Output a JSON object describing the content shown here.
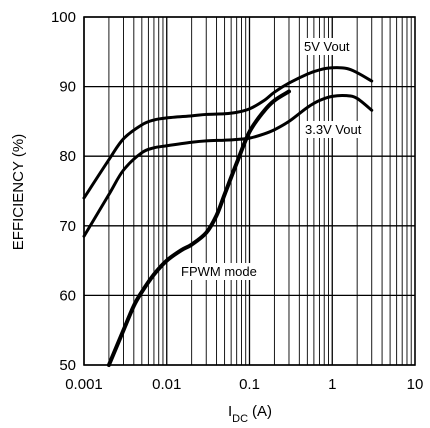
{
  "chart_data": {
    "type": "line",
    "xscale": "log",
    "xlim": [
      0.001,
      10
    ],
    "ylim": [
      50,
      100
    ],
    "grid": true,
    "xlabel": {
      "main": "I",
      "sub": "DC",
      "unit": "(A)"
    },
    "ylabel": "EFFICIENCY (%)",
    "x_ticks": [
      {
        "value": 0.001,
        "label": "0.001"
      },
      {
        "value": 0.01,
        "label": "0.01"
      },
      {
        "value": 0.1,
        "label": "0.1"
      },
      {
        "value": 1,
        "label": "1"
      },
      {
        "value": 10,
        "label": "10"
      }
    ],
    "y_ticks": [
      {
        "value": 50,
        "label": "50"
      },
      {
        "value": 60,
        "label": "60"
      },
      {
        "value": 70,
        "label": "70"
      },
      {
        "value": 80,
        "label": "80"
      },
      {
        "value": 90,
        "label": "90"
      },
      {
        "value": 100,
        "label": "100"
      }
    ],
    "series": [
      {
        "label": "5V Vout",
        "points": [
          [
            0.001,
            74
          ],
          [
            0.002,
            79.5
          ],
          [
            0.003,
            82.5
          ],
          [
            0.005,
            84.5
          ],
          [
            0.007,
            85.2
          ],
          [
            0.01,
            85.5
          ],
          [
            0.02,
            85.8
          ],
          [
            0.03,
            86
          ],
          [
            0.05,
            86.1
          ],
          [
            0.07,
            86.3
          ],
          [
            0.1,
            86.8
          ],
          [
            0.15,
            88
          ],
          [
            0.2,
            89.2
          ],
          [
            0.3,
            90.5
          ],
          [
            0.5,
            91.8
          ],
          [
            0.7,
            92.4
          ],
          [
            1,
            92.7
          ],
          [
            1.5,
            92.6
          ],
          [
            2,
            92
          ],
          [
            3,
            90.8
          ]
        ]
      },
      {
        "label": "3.3V Vout",
        "points": [
          [
            0.001,
            68.5
          ],
          [
            0.002,
            74.5
          ],
          [
            0.003,
            78
          ],
          [
            0.005,
            80.5
          ],
          [
            0.007,
            81.2
          ],
          [
            0.01,
            81.5
          ],
          [
            0.02,
            82
          ],
          [
            0.03,
            82.2
          ],
          [
            0.05,
            82.3
          ],
          [
            0.07,
            82.4
          ],
          [
            0.1,
            82.6
          ],
          [
            0.15,
            83.2
          ],
          [
            0.2,
            83.8
          ],
          [
            0.3,
            85
          ],
          [
            0.5,
            87
          ],
          [
            0.7,
            88
          ],
          [
            1,
            88.6
          ],
          [
            1.5,
            88.7
          ],
          [
            2,
            88.3
          ],
          [
            3,
            86.6
          ]
        ]
      },
      {
        "label": "FPWM mode",
        "points": [
          [
            0.002,
            50
          ],
          [
            0.003,
            55
          ],
          [
            0.004,
            58.5
          ],
          [
            0.005,
            60.5
          ],
          [
            0.007,
            63
          ],
          [
            0.01,
            65
          ],
          [
            0.015,
            66.5
          ],
          [
            0.02,
            67.3
          ],
          [
            0.03,
            69
          ],
          [
            0.04,
            71.5
          ],
          [
            0.05,
            74.5
          ],
          [
            0.07,
            79
          ],
          [
            0.1,
            83.5
          ],
          [
            0.15,
            86.5
          ],
          [
            0.2,
            88
          ],
          [
            0.3,
            89.3
          ]
        ]
      }
    ],
    "annotations": [
      {
        "text": "5V Vout"
      },
      {
        "text": "3.3V Vout"
      },
      {
        "text": "FPWM mode"
      }
    ]
  }
}
